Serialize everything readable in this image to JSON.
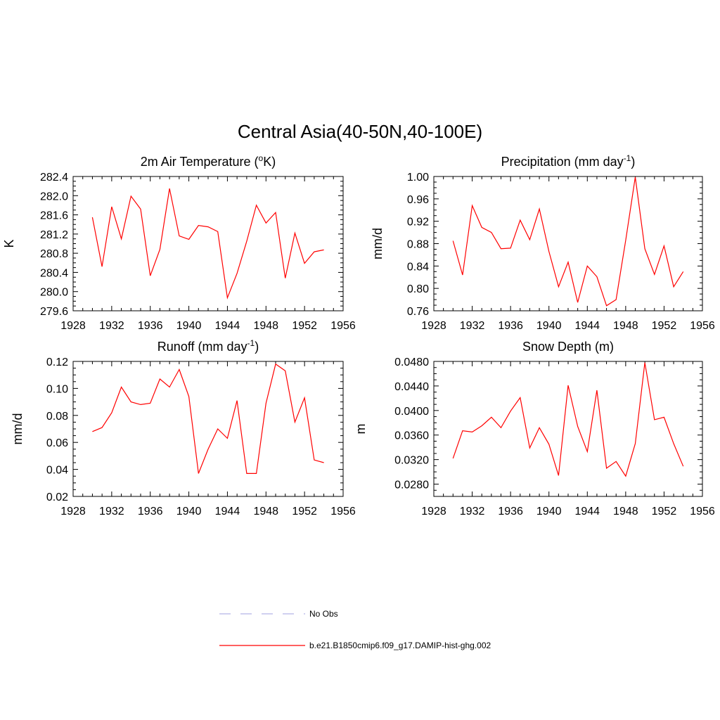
{
  "figure": {
    "title": "Central Asia(40-50N,40-100E)"
  },
  "chart_data": [
    {
      "type": "line",
      "title": "2m Air Temperature (oK)",
      "title_parts": [
        "2m Air Temperature (",
        "o",
        "K)"
      ],
      "xlabel": "",
      "ylabel": "K",
      "xlim": [
        1928,
        1956
      ],
      "ylim": [
        279.6,
        282.4
      ],
      "xticks": [
        1928,
        1932,
        1936,
        1940,
        1944,
        1948,
        1952,
        1956
      ],
      "xtick_labels": [
        "1928",
        "1932",
        "1936",
        "1940",
        "1944",
        "1948",
        "1952",
        "1956"
      ],
      "yticks": [
        279.6,
        280.0,
        280.4,
        280.8,
        281.2,
        281.6,
        282.0,
        282.4
      ],
      "ytick_labels": [
        "279.6",
        "280.0",
        "280.4",
        "280.8",
        "281.2",
        "281.6",
        "282.0",
        "282.4"
      ],
      "x": [
        1930,
        1931,
        1932,
        1933,
        1934,
        1935,
        1936,
        1937,
        1938,
        1939,
        1940,
        1941,
        1942,
        1943,
        1944,
        1945,
        1946,
        1947,
        1948,
        1949,
        1950,
        1951,
        1952,
        1953,
        1954
      ],
      "series": [
        {
          "values": [
            281.55,
            280.52,
            281.77,
            281.1,
            281.99,
            281.72,
            280.33,
            280.88,
            282.15,
            281.16,
            281.09,
            281.38,
            281.35,
            281.25,
            279.87,
            280.38,
            281.05,
            281.8,
            281.43,
            281.65,
            280.28,
            281.22,
            280.59,
            280.83,
            280.87
          ]
        }
      ]
    },
    {
      "type": "line",
      "title": "Precipitation (mm day-1)",
      "title_parts": [
        "Precipitation (mm day",
        "-1",
        ")"
      ],
      "xlabel": "",
      "ylabel": "mm/d",
      "xlim": [
        1928,
        1956
      ],
      "ylim": [
        0.76,
        1.0
      ],
      "xticks": [
        1928,
        1932,
        1936,
        1940,
        1944,
        1948,
        1952,
        1956
      ],
      "xtick_labels": [
        "1928",
        "1932",
        "1936",
        "1940",
        "1944",
        "1948",
        "1952",
        "1956"
      ],
      "yticks": [
        0.76,
        0.8,
        0.84,
        0.88,
        0.92,
        0.96,
        1.0
      ],
      "ytick_labels": [
        "0.76",
        "0.80",
        "0.84",
        "0.88",
        "0.92",
        "0.96",
        "1.00"
      ],
      "x": [
        1930,
        1931,
        1932,
        1933,
        1934,
        1935,
        1936,
        1937,
        1938,
        1939,
        1940,
        1941,
        1942,
        1943,
        1944,
        1945,
        1946,
        1947,
        1948,
        1949,
        1950,
        1951,
        1952,
        1953,
        1954
      ],
      "series": [
        {
          "values": [
            0.885,
            0.824,
            0.948,
            0.909,
            0.9,
            0.871,
            0.872,
            0.922,
            0.887,
            0.942,
            0.866,
            0.803,
            0.847,
            0.775,
            0.84,
            0.821,
            0.769,
            0.78,
            0.886,
            0.999,
            0.871,
            0.825,
            0.876,
            0.803,
            0.83
          ]
        }
      ]
    },
    {
      "type": "line",
      "title": "Runoff (mm day-1)",
      "title_parts": [
        "Runoff (mm day",
        "-1",
        ")"
      ],
      "xlabel": "",
      "ylabel": "mm/d",
      "xlim": [
        1928,
        1956
      ],
      "ylim": [
        0.02,
        0.12
      ],
      "xticks": [
        1928,
        1932,
        1936,
        1940,
        1944,
        1948,
        1952,
        1956
      ],
      "xtick_labels": [
        "1928",
        "1932",
        "1936",
        "1940",
        "1944",
        "1948",
        "1952",
        "1956"
      ],
      "yticks": [
        0.02,
        0.04,
        0.06,
        0.08,
        0.1,
        0.12
      ],
      "ytick_labels": [
        "0.02",
        "0.04",
        "0.06",
        "0.08",
        "0.10",
        "0.12"
      ],
      "x": [
        1930,
        1931,
        1932,
        1933,
        1934,
        1935,
        1936,
        1937,
        1938,
        1939,
        1940,
        1941,
        1942,
        1943,
        1944,
        1945,
        1946,
        1947,
        1948,
        1949,
        1950,
        1951,
        1952,
        1953,
        1954
      ],
      "series": [
        {
          "values": [
            0.068,
            0.071,
            0.082,
            0.101,
            0.09,
            0.088,
            0.089,
            0.107,
            0.101,
            0.114,
            0.094,
            0.037,
            0.055,
            0.07,
            0.063,
            0.091,
            0.037,
            0.037,
            0.089,
            0.118,
            0.113,
            0.075,
            0.093,
            0.047,
            0.045
          ]
        }
      ]
    },
    {
      "type": "line",
      "title": "Snow Depth (m)",
      "title_parts": [
        "Snow Depth (m)",
        "",
        ""
      ],
      "xlabel": "",
      "ylabel": "m",
      "xlim": [
        1928,
        1956
      ],
      "ylim": [
        0.026,
        0.048
      ],
      "xticks": [
        1928,
        1932,
        1936,
        1940,
        1944,
        1948,
        1952,
        1956
      ],
      "xtick_labels": [
        "1928",
        "1932",
        "1936",
        "1940",
        "1944",
        "1948",
        "1952",
        "1956"
      ],
      "yticks": [
        0.028,
        0.032,
        0.036,
        0.04,
        0.044,
        0.048
      ],
      "ytick_labels": [
        "0.0280",
        "0.0320",
        "0.0360",
        "0.0400",
        "0.0440",
        "0.0480"
      ],
      "x": [
        1930,
        1931,
        1932,
        1933,
        1934,
        1935,
        1936,
        1937,
        1938,
        1939,
        1940,
        1941,
        1942,
        1943,
        1944,
        1945,
        1946,
        1947,
        1948,
        1949,
        1950,
        1951,
        1952,
        1953,
        1954
      ],
      "series": [
        {
          "values": [
            0.0322,
            0.0367,
            0.0365,
            0.0375,
            0.0389,
            0.0372,
            0.0399,
            0.0421,
            0.0339,
            0.0372,
            0.0345,
            0.0294,
            0.0441,
            0.0374,
            0.0333,
            0.0433,
            0.0306,
            0.0317,
            0.0293,
            0.0346,
            0.0478,
            0.0385,
            0.0389,
            0.0346,
            0.0309
          ]
        }
      ]
    }
  ],
  "legend": {
    "items": [
      {
        "label": "No Obs",
        "color": "#b3b3e6",
        "style": "dashed"
      },
      {
        "label": "b.e21.B1850cmip6.f09_g17.DAMIP-hist-ghg.002",
        "color": "#ff0000",
        "style": "solid"
      }
    ]
  },
  "colors": {
    "series_line": "#ff0000"
  }
}
